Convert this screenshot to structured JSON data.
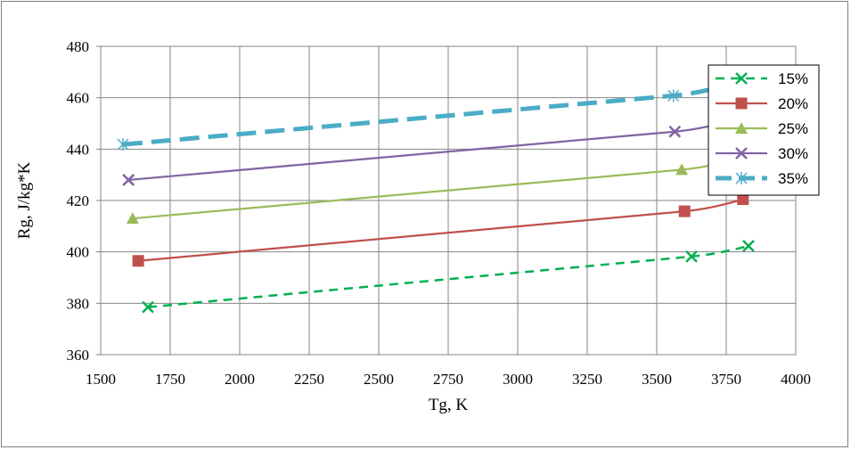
{
  "chart_data": {
    "type": "line",
    "title": "",
    "xlabel": "Tg, K",
    "ylabel": "Rg, J/kg*K",
    "xlim": [
      1500,
      4000
    ],
    "ylim": [
      360,
      480
    ],
    "xticks": [
      1500,
      1750,
      2000,
      2250,
      2500,
      2750,
      3000,
      3250,
      3500,
      3750,
      4000
    ],
    "yticks": [
      360,
      380,
      400,
      420,
      440,
      460,
      480
    ],
    "grid": true,
    "legend_position": "right",
    "series": [
      {
        "name": "15%",
        "color": "#00b050",
        "dash": "dashed",
        "marker": "x",
        "points": [
          [
            1670,
            378.5
          ],
          [
            3625,
            398.2
          ],
          [
            3830,
            402.3
          ]
        ]
      },
      {
        "name": "20%",
        "color": "#c0504d",
        "dash": "solid",
        "marker": "square",
        "points": [
          [
            1635,
            396.5
          ],
          [
            3600,
            415.8
          ],
          [
            3810,
            420.5
          ]
        ]
      },
      {
        "name": "25%",
        "color": "#9bbb59",
        "dash": "solid",
        "marker": "triangle",
        "points": [
          [
            1615,
            413
          ],
          [
            3590,
            432
          ],
          [
            3800,
            436.5
          ]
        ]
      },
      {
        "name": "30%",
        "color": "#8064a2",
        "dash": "solid",
        "marker": "x",
        "points": [
          [
            1600,
            428
          ],
          [
            3565,
            446.8
          ],
          [
            3790,
            451.8
          ]
        ]
      },
      {
        "name": "35%",
        "color": "#4bacc6",
        "dash": "longdash",
        "marker": "star",
        "points": [
          [
            1580,
            441.8
          ],
          [
            3560,
            460.8
          ],
          [
            3770,
            465.5
          ]
        ]
      }
    ]
  }
}
